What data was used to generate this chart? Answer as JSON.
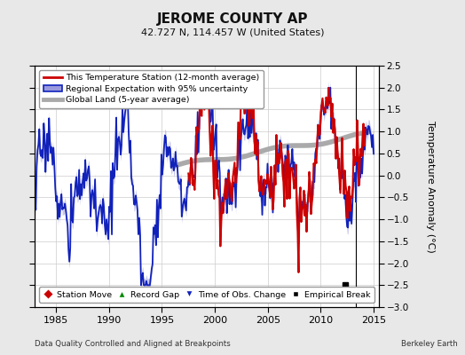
{
  "title": "JEROME COUNTY AP",
  "subtitle": "42.727 N, 114.457 W (United States)",
  "ylabel": "Temperature Anomaly (°C)",
  "xlabel_left": "Data Quality Controlled and Aligned at Breakpoints",
  "xlabel_right": "Berkeley Earth",
  "ylim": [
    -3.0,
    2.5
  ],
  "xlim": [
    1983.0,
    2015.5
  ],
  "xticks": [
    1985,
    1990,
    1995,
    2000,
    2005,
    2010,
    2015
  ],
  "yticks": [
    -3,
    -2.5,
    -2,
    -1.5,
    -1,
    -0.5,
    0,
    0.5,
    1,
    1.5,
    2,
    2.5
  ],
  "red_color": "#cc0000",
  "blue_color": "#1122bb",
  "blue_fill": "#9999dd",
  "gray_color": "#aaaaaa",
  "background_color": "#e8e8e8",
  "plot_bg": "#ffffff",
  "empirical_break_x": 2012.3,
  "empirical_break_y": -2.5,
  "vline_x": 2013.3,
  "red_start": 1997.5,
  "red_end": 2014.2,
  "gray_start": 1996.0,
  "gray_end": 2014.5
}
